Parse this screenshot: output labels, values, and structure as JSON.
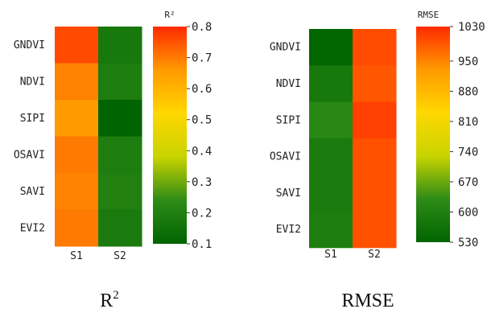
{
  "chart_data": [
    {
      "type": "heatmap",
      "categories_x": [
        "S1",
        "S2"
      ],
      "categories_y": [
        "GNDVI",
        "NDVI",
        "SIPI",
        "OSAVI",
        "SAVI",
        "EVI2"
      ],
      "values": [
        [
          0.76,
          0.17
        ],
        [
          0.69,
          0.19
        ],
        [
          0.66,
          0.1
        ],
        [
          0.7,
          0.19
        ],
        [
          0.69,
          0.2
        ],
        [
          0.7,
          0.18
        ]
      ],
      "colorbar_title": "R²",
      "colorbar_ticks": [
        "0.8",
        "0.7",
        "0.6",
        "0.5",
        "0.4",
        "0.3",
        "0.2",
        "0.1"
      ],
      "colorbar_tick_values": [
        0.8,
        0.7,
        0.6,
        0.5,
        0.4,
        0.3,
        0.2,
        0.1
      ],
      "range": [
        0.1,
        0.8
      ],
      "caption": "R",
      "caption_sup": "2",
      "colorscale": [
        "#006400",
        "#2e8b17",
        "#c8d400",
        "#ffd700",
        "#ff9a00",
        "#ff2a00"
      ]
    },
    {
      "type": "heatmap",
      "categories_x": [
        "S1",
        "S2"
      ],
      "categories_y": [
        "GNDVI",
        "NDVI",
        "SIPI",
        "OSAVI",
        "SAVI",
        "EVI2"
      ],
      "values": [
        [
          532,
          1000
        ],
        [
          580,
          990
        ],
        [
          620,
          1010
        ],
        [
          590,
          995
        ],
        [
          590,
          995
        ],
        [
          595,
          995
        ]
      ],
      "colorbar_title": "RMSE",
      "colorbar_ticks": [
        "1030",
        "950",
        "880",
        "810",
        "740",
        "670",
        "600",
        "530"
      ],
      "colorbar_tick_values": [
        1030,
        950,
        880,
        810,
        740,
        670,
        600,
        530
      ],
      "range": [
        530,
        1030
      ],
      "caption": "RMSE",
      "caption_sup": "",
      "colorscale": [
        "#006400",
        "#2e8b17",
        "#c8d400",
        "#ffd700",
        "#ff9a00",
        "#ff2a00"
      ]
    }
  ]
}
